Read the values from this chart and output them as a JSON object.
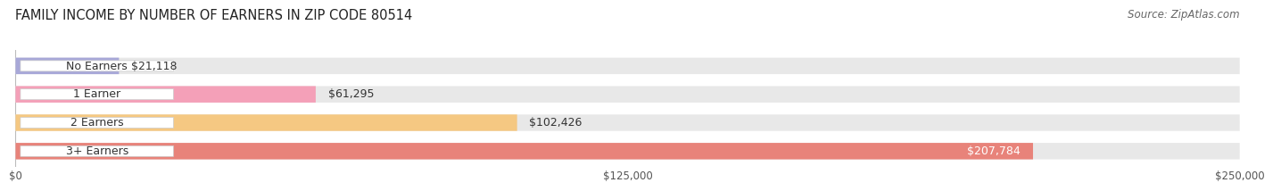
{
  "title": "FAMILY INCOME BY NUMBER OF EARNERS IN ZIP CODE 80514",
  "source": "Source: ZipAtlas.com",
  "categories": [
    "No Earners",
    "1 Earner",
    "2 Earners",
    "3+ Earners"
  ],
  "values": [
    21118,
    61295,
    102426,
    207784
  ],
  "labels": [
    "$21,118",
    "$61,295",
    "$102,426",
    "$207,784"
  ],
  "bar_colors": [
    "#a8a8d8",
    "#f4a0b8",
    "#f5c882",
    "#e8837a"
  ],
  "bar_bg_color": "#e8e8e8",
  "background_color": "#ffffff",
  "xmax": 250000,
  "xticks": [
    0,
    125000,
    250000
  ],
  "xticklabels": [
    "$0",
    "$125,000",
    "$250,000"
  ],
  "title_fontsize": 10.5,
  "source_fontsize": 8.5,
  "label_fontsize": 9,
  "category_fontsize": 9,
  "pill_label_color": "#333333",
  "inside_label_color": "#ffffff",
  "outside_label_color": "#333333"
}
